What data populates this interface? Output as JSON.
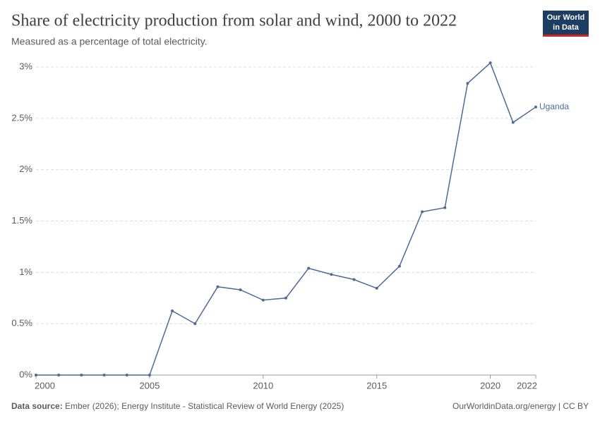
{
  "chart_data": {
    "type": "line",
    "title": "Share of electricity production from solar and wind, 2000 to 2022",
    "subtitle": "Measured as a percentage of total electricity.",
    "x": [
      2000,
      2001,
      2002,
      2003,
      2004,
      2005,
      2006,
      2007,
      2008,
      2009,
      2010,
      2011,
      2012,
      2013,
      2014,
      2015,
      2016,
      2017,
      2018,
      2019,
      2020,
      2021,
      2022
    ],
    "series": [
      {
        "name": "Uganda",
        "color": "#4c6a9c",
        "values": [
          0,
          0,
          0,
          0,
          0,
          0,
          0.625,
          0.5,
          0.86,
          0.83,
          0.73,
          0.75,
          1.04,
          0.98,
          0.93,
          0.845,
          1.06,
          1.59,
          1.63,
          2.84,
          3.04,
          2.46,
          2.61
        ]
      }
    ],
    "xlim": [
      2000,
      2022
    ],
    "xticks": [
      2000,
      2005,
      2010,
      2015,
      2020,
      2022
    ],
    "ylim": [
      0,
      3
    ],
    "yticks": [
      {
        "value": 0,
        "label": "0%"
      },
      {
        "value": 0.5,
        "label": "0.5%"
      },
      {
        "value": 1,
        "label": "1%"
      },
      {
        "value": 1.5,
        "label": "1.5%"
      },
      {
        "value": 2,
        "label": "2%"
      },
      {
        "value": 2.5,
        "label": "2.5%"
      },
      {
        "value": 3,
        "label": "3%"
      }
    ],
    "grid": true,
    "source_label": "Data source:",
    "source": "Ember (2026); Energy Institute - Statistical Review of World Energy (2025)",
    "footer_right": "OurWorldinData.org/energy | CC BY",
    "logo": [
      "Our World",
      "in Data"
    ]
  }
}
